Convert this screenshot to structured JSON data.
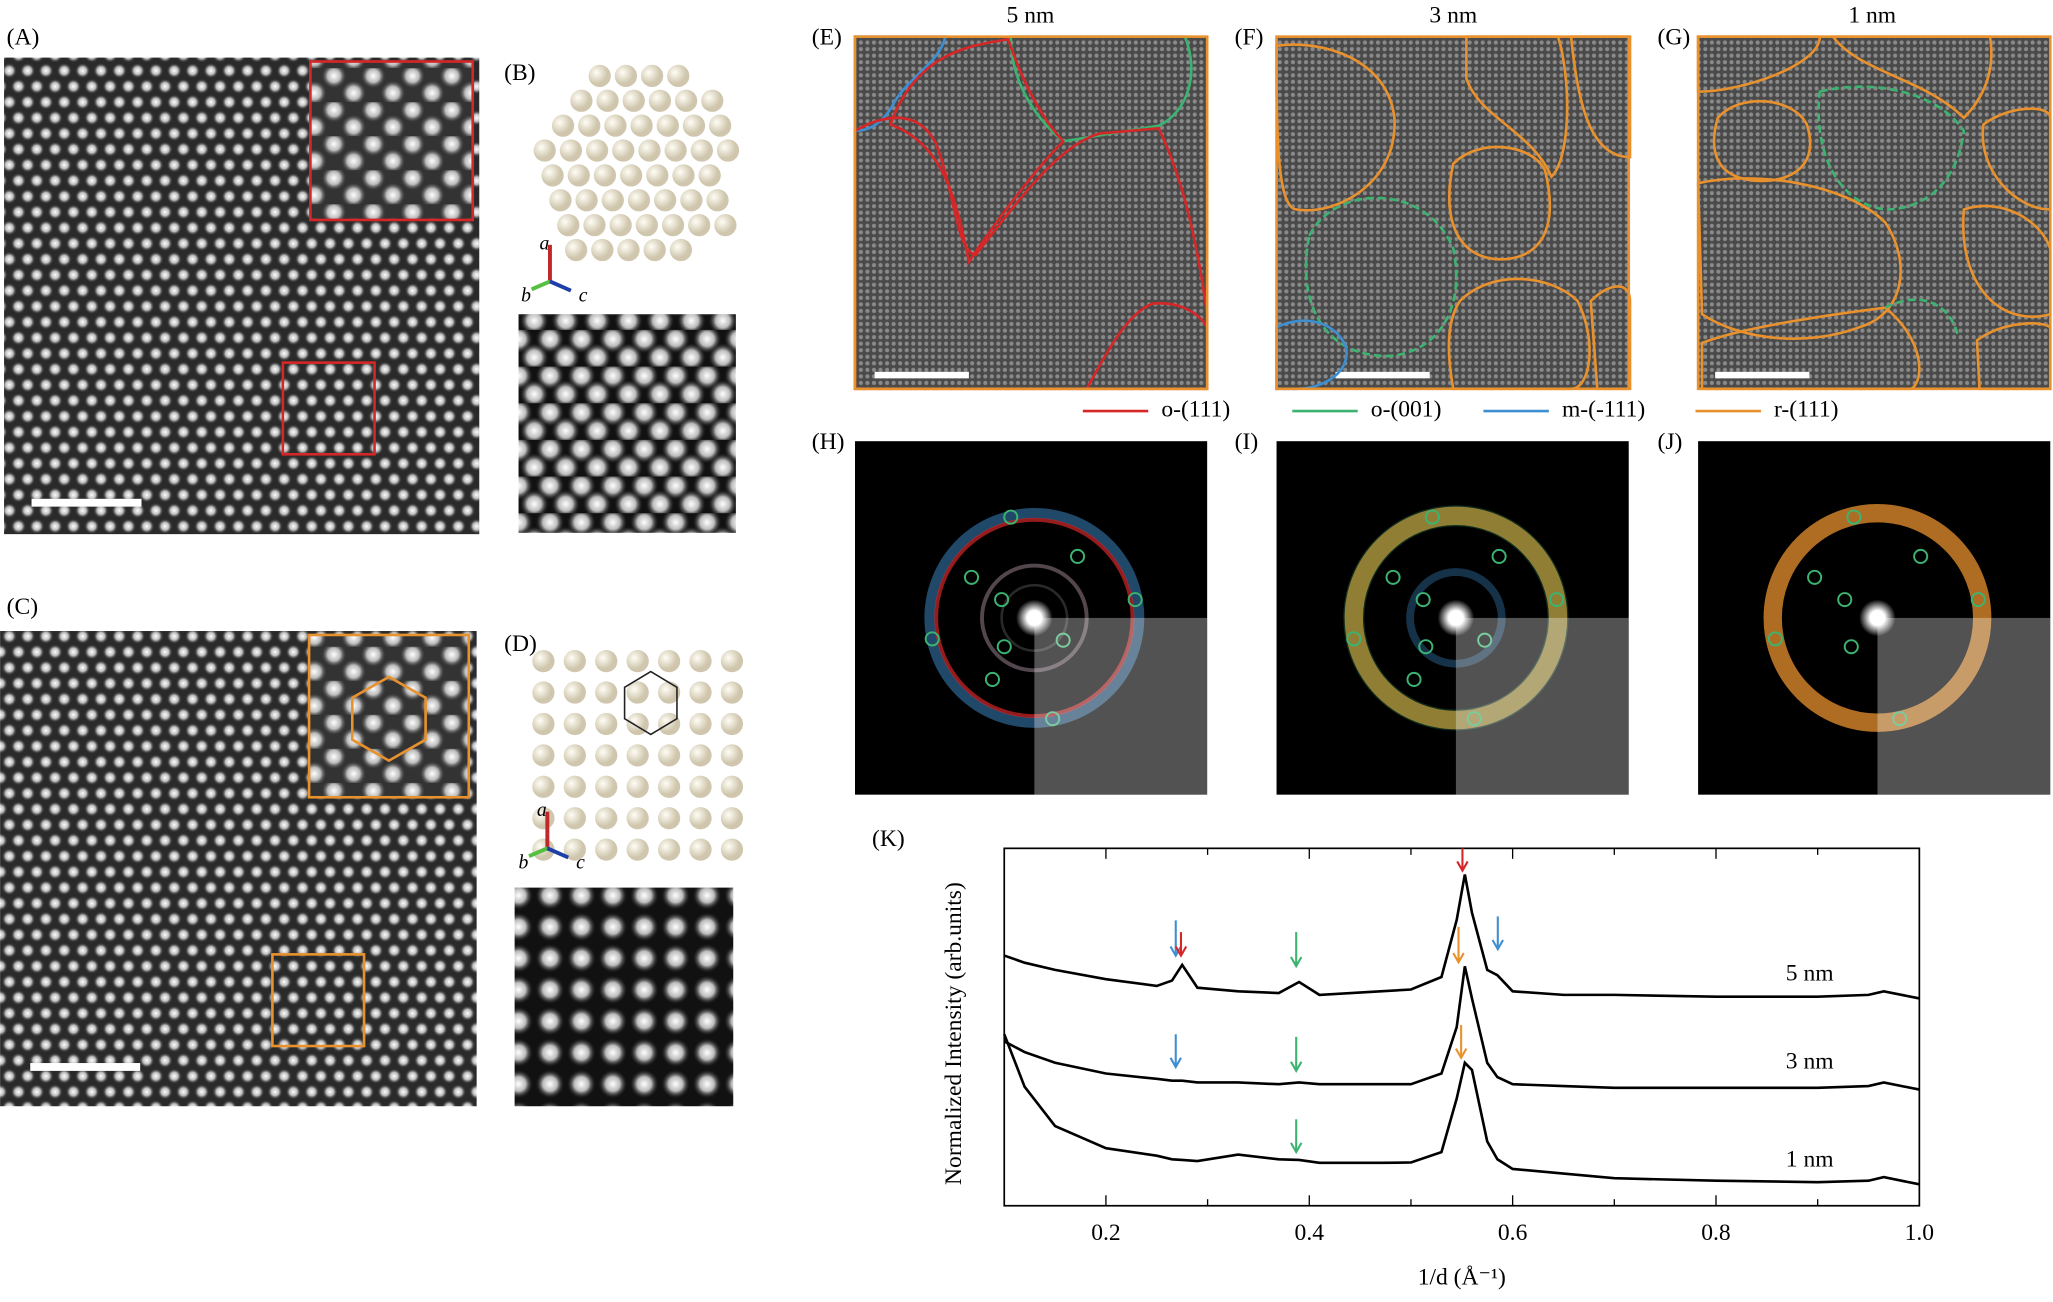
{
  "panel_labels": [
    "(A)",
    "(B)",
    "(C)",
    "(D)",
    "(E)",
    "(F)",
    "(G)",
    "(H)",
    "(I)",
    "(J)",
    "(K)"
  ],
  "titles": [
    "5 nm",
    "3 nm",
    "1 nm"
  ],
  "legend": [
    {
      "label": "o-(111)",
      "color": "#d62728"
    },
    {
      "label": "o-(001)",
      "color": "#3cb371"
    },
    {
      "label": "m-(-111)",
      "color": "#3d8fd1"
    },
    {
      "label": "r-(111)",
      "color": "#e8912d"
    }
  ],
  "crystal_axes": [
    "a",
    "b",
    "c"
  ],
  "chart_data": {
    "type": "line",
    "xlabel": "1/d (Å⁻¹)",
    "ylabel": "Normalized Intensity (arb.units)",
    "x": [
      0.1,
      0.12,
      0.15,
      0.2,
      0.25,
      0.265,
      0.275,
      0.29,
      0.33,
      0.37,
      0.39,
      0.41,
      0.47,
      0.5,
      0.53,
      0.545,
      0.553,
      0.56,
      0.575,
      0.585,
      0.6,
      0.65,
      0.7,
      0.8,
      0.9,
      0.95,
      0.965,
      1.0
    ],
    "xlim": [
      0.1,
      1.0
    ],
    "xticks": [
      0.2,
      0.4,
      0.6,
      0.8,
      {
        "value": 1.0,
        "label": "1.0"
      }
    ],
    "ylim": [
      0,
      1
    ],
    "series": [
      {
        "name": "5 nm",
        "color": "#000000",
        "values": [
          0.7,
          0.68,
          0.66,
          0.634,
          0.615,
          0.63,
          0.674,
          0.61,
          0.6,
          0.595,
          0.626,
          0.59,
          0.6,
          0.605,
          0.64,
          0.8,
          0.927,
          0.82,
          0.66,
          0.645,
          0.6,
          0.59,
          0.59,
          0.585,
          0.585,
          0.59,
          0.6,
          0.58
        ]
      },
      {
        "name": "3 nm",
        "color": "#000000",
        "values": [
          0.46,
          0.43,
          0.4,
          0.37,
          0.355,
          0.35,
          0.35,
          0.345,
          0.345,
          0.34,
          0.345,
          0.34,
          0.34,
          0.34,
          0.37,
          0.5,
          0.67,
          0.58,
          0.4,
          0.36,
          0.34,
          0.335,
          0.33,
          0.33,
          0.33,
          0.335,
          0.345,
          0.325
        ]
      },
      {
        "name": "1 nm",
        "color": "#000000",
        "values": [
          0.48,
          0.333,
          0.223,
          0.161,
          0.14,
          0.13,
          0.128,
          0.125,
          0.143,
          0.13,
          0.128,
          0.12,
          0.12,
          0.121,
          0.15,
          0.3,
          0.4,
          0.38,
          0.18,
          0.13,
          0.103,
          0.09,
          0.077,
          0.07,
          0.066,
          0.07,
          0.08,
          0.06
        ]
      }
    ]
  }
}
